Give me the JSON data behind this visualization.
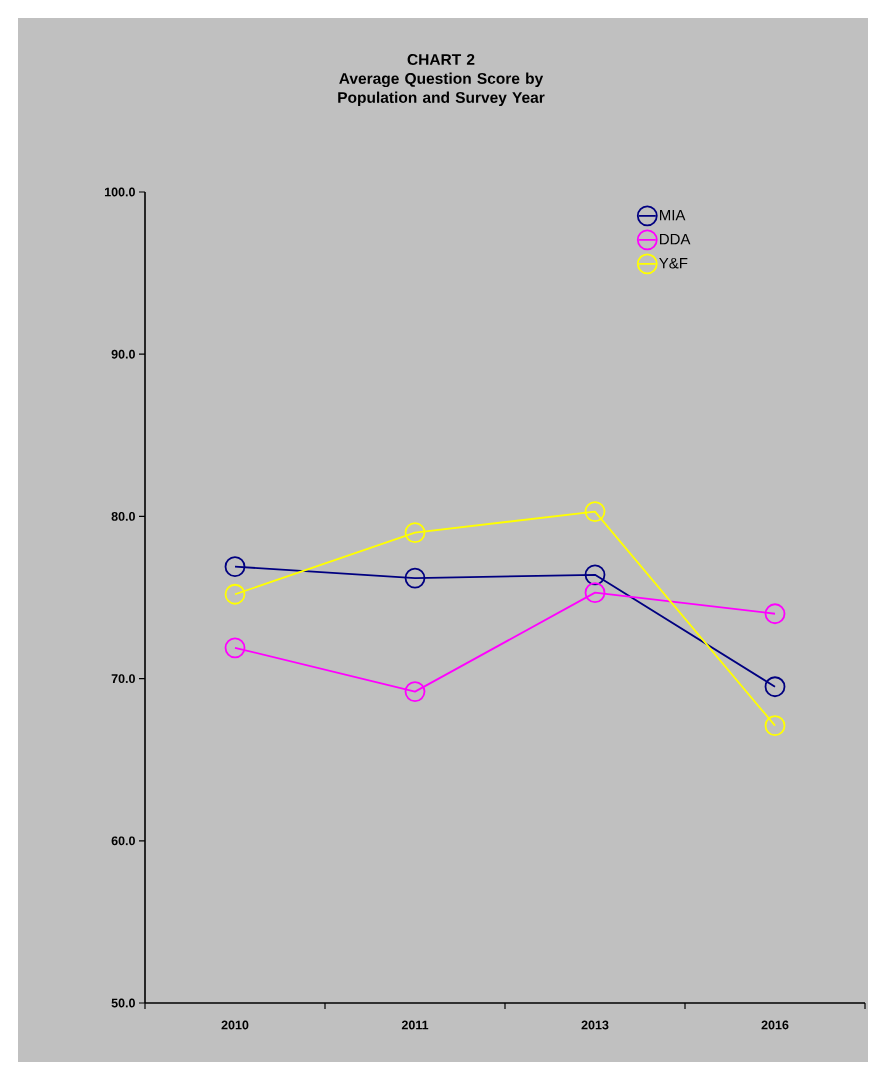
{
  "chart_data": {
    "type": "line",
    "title": "CHART 2",
    "subtitle": "Average Question Score by Population and Survey Year",
    "categories": [
      "2010",
      "2011",
      "2013",
      "2016"
    ],
    "series": [
      {
        "name": "MIA",
        "color": "#000080",
        "values": [
          76.9,
          76.2,
          76.4,
          69.5
        ]
      },
      {
        "name": "DDA",
        "color": "#ff00ff",
        "values": [
          71.9,
          69.2,
          75.3,
          74.0
        ]
      },
      {
        "name": "Y&F",
        "color": "#ffff00",
        "values": [
          75.2,
          79.0,
          80.3,
          67.1
        ]
      }
    ],
    "ylim": [
      50,
      100
    ],
    "yticks": [
      {
        "value": 50,
        "label": "50.0"
      },
      {
        "value": 60,
        "label": "60.0"
      },
      {
        "value": 70,
        "label": "70.0"
      },
      {
        "value": 80,
        "label": "80.0"
      },
      {
        "value": 90,
        "label": "90.0"
      },
      {
        "value": 100,
        "label": "100.0"
      }
    ],
    "marker": "circle",
    "legend": "top right"
  }
}
